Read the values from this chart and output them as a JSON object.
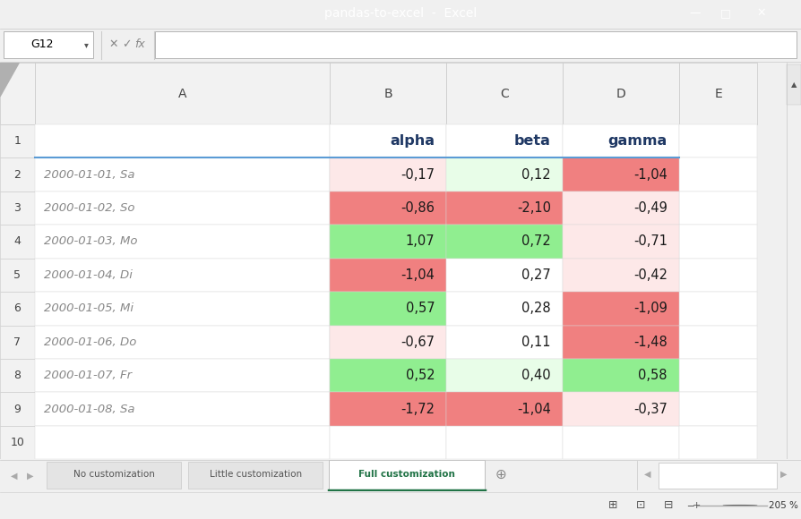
{
  "title": "pandas-to-excel  -  Excel",
  "cell_ref": "G12",
  "col_headers": [
    "A",
    "B",
    "C",
    "D",
    "E"
  ],
  "row_numbers": [
    "1",
    "2",
    "3",
    "4",
    "5",
    "6",
    "7",
    "8",
    "9",
    "10"
  ],
  "header_labels": [
    "alpha",
    "beta",
    "gamma"
  ],
  "index_labels": [
    "2000-01-01, Sa",
    "2000-01-02, So",
    "2000-01-03, Mo",
    "2000-01-04, Di",
    "2000-01-05, Mi",
    "2000-01-06, Do",
    "2000-01-07, Fr",
    "2000-01-08, Sa"
  ],
  "data": [
    [
      "-0,17",
      "0,12",
      "-1,04"
    ],
    [
      "-0,86",
      "-2,10",
      "-0,49"
    ],
    [
      "1,07",
      "0,72",
      "-0,71"
    ],
    [
      "-1,04",
      "0,27",
      "-0,42"
    ],
    [
      "0,57",
      "0,28",
      "-1,09"
    ],
    [
      "-0,67",
      "0,11",
      "-1,48"
    ],
    [
      "0,52",
      "0,40",
      "0,58"
    ],
    [
      "-1,72",
      "-1,04",
      "-0,37"
    ]
  ],
  "cell_colors": [
    [
      "#fde8e8",
      "#e8fde8",
      "#f08080"
    ],
    [
      "#f08080",
      "#f08080",
      "#fde8e8"
    ],
    [
      "#90ee90",
      "#90ee90",
      "#fde8e8"
    ],
    [
      "#f08080",
      "#ffffff",
      "#fde8e8"
    ],
    [
      "#90ee90",
      "#ffffff",
      "#f08080"
    ],
    [
      "#fde8e8",
      "#ffffff",
      "#f08080"
    ],
    [
      "#90ee90",
      "#e8fde8",
      "#90ee90"
    ],
    [
      "#f08080",
      "#f08080",
      "#fde8e8"
    ]
  ],
  "title_bar_color": "#217346",
  "excel_bg": "#f0f0f0",
  "active_tab_color": "#217346",
  "tab_names": [
    "No customization",
    "Little customization",
    "Full customization"
  ],
  "header_text_color": "#1f3864",
  "data_text_color": "#1a1a1a",
  "index_text_color": "#888888"
}
